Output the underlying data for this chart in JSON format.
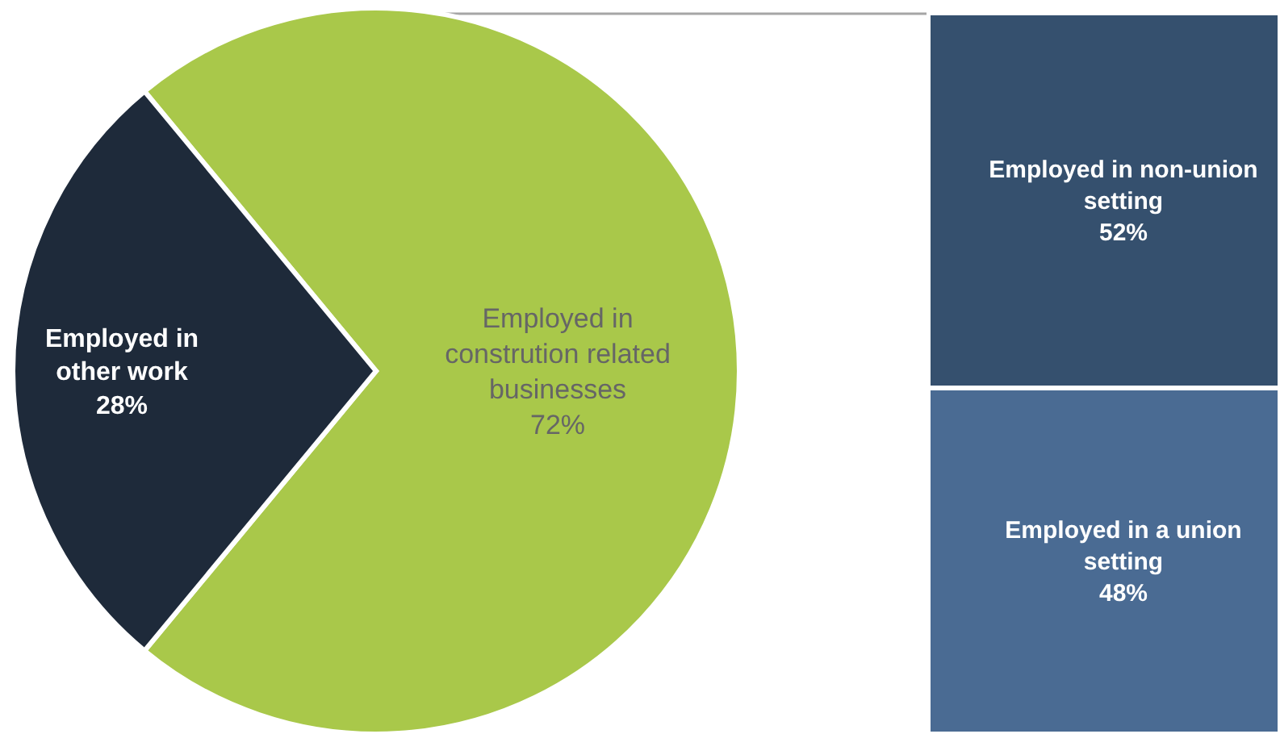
{
  "chart_data": [
    {
      "type": "pie",
      "categories": [
        "Employed in constrution related businesses",
        "Employed in other work"
      ],
      "values": [
        72,
        28
      ],
      "colors": [
        "#a9c84a",
        "#1e2a3a"
      ],
      "value_labels": [
        "72%",
        "28%"
      ],
      "legend": false
    },
    {
      "type": "bar",
      "stacked": true,
      "categories": [
        null
      ],
      "legend": false,
      "series": [
        {
          "name": "Employed in a union setting",
          "color": "#4a6b93",
          "values": [
            48
          ],
          "value_labels": [
            "48%"
          ]
        },
        {
          "name": "Employed in non-union setting",
          "color": "#35506e",
          "values": [
            52
          ],
          "value_labels": [
            "52%"
          ]
        }
      ]
    }
  ]
}
